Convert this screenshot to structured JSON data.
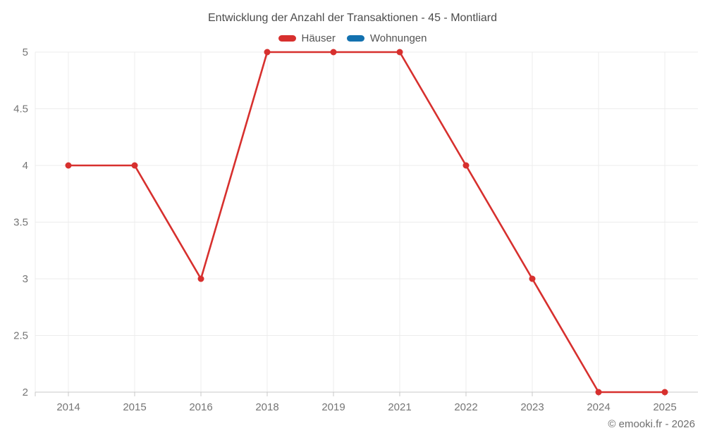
{
  "chart_data": {
    "type": "line",
    "title": "Entwicklung der Anzahl der Transaktionen - 45 - Montliard",
    "categories": [
      "2014",
      "2015",
      "2016",
      "2018",
      "2019",
      "2021",
      "2022",
      "2023",
      "2024",
      "2025"
    ],
    "series": [
      {
        "name": "Häuser",
        "color": "#d7302e",
        "values": [
          4,
          4,
          3,
          5,
          5,
          5,
          4,
          3,
          2,
          2
        ]
      },
      {
        "name": "Wohnungen",
        "color": "#1371af",
        "values": []
      }
    ],
    "ylim": [
      2,
      5
    ],
    "ytick_labels": [
      "5",
      "4.5",
      "4",
      "3.5",
      "3",
      "2.5",
      "2"
    ],
    "xlabel": "",
    "ylabel": "",
    "grid": true,
    "legend_position": "top",
    "marker": "circle",
    "marker_radius": 4.5,
    "line_width": 2.6
  },
  "footer": {
    "copyright": "© emooki.fr - 2026"
  },
  "colors": {
    "background": "#ffffff",
    "grid": "#ececec",
    "axis": "#c9c9c9",
    "tick_text": "#757575",
    "title_text": "#4c4c4c",
    "legend_text": "#545454",
    "footer_text": "#6e6e6e"
  }
}
